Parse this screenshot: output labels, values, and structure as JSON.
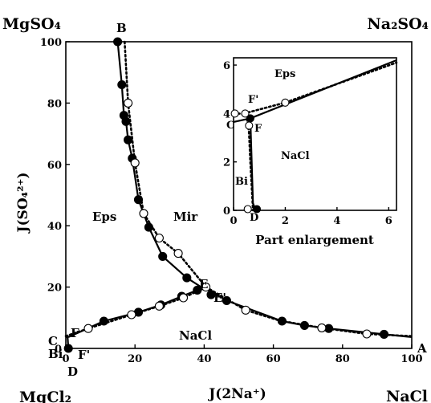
{
  "chart_data": [
    {
      "type": "scatter",
      "title": "",
      "xlabel": "J(2Na⁺)",
      "ylabel": "J(SO₄²⁺)",
      "xlim": [
        0,
        100
      ],
      "ylim": [
        0,
        100
      ],
      "xticks": [
        "0",
        "20",
        "40",
        "60",
        "80",
        "100"
      ],
      "yticks": [
        "0",
        "20",
        "40",
        "60",
        "80",
        "100"
      ],
      "corners": {
        "top_left": "MgSO₄",
        "top_right": "Na₂SO₄",
        "bottom_left": "MgCl₂",
        "bottom_right": "NaCl"
      },
      "regions": {
        "eps": "Eps",
        "mir": "Mir",
        "nacl": "NaCl"
      },
      "points_labels": {
        "A": "A",
        "B": "B",
        "C": "C",
        "D": "D",
        "E": "E",
        "E_prime": "E'",
        "F": "F",
        "F_prime": "F'",
        "Bi": "Bi"
      },
      "series": [
        {
          "style": "solid line, filled circles",
          "curves": [
            {
              "x": [
                15.0,
                16.2,
                16.8,
                17.4,
                18.0,
                19.2,
                21.0,
                24.0,
                28.0,
                35.0,
                40.5
              ],
              "y": [
                100,
                86,
                76,
                74,
                68,
                62,
                48.5,
                39.5,
                30,
                23,
                19
              ]
            },
            {
              "x": [
                0,
                0.5,
                1.0,
                11.0,
                21.0,
                27.5,
                33.5,
                38.0,
                40.5
              ],
              "y": [
                3.7,
                3.7,
                3.8,
                8.9,
                11.8,
                14.2,
                17.0,
                19.0,
                19.5
              ]
            },
            {
              "x": [
                40.5,
                46.5,
                62.5,
                69.0,
                76.0,
                92.0,
                100.0
              ],
              "y": [
                19.5,
                15.6,
                8.9,
                7.5,
                6.5,
                4.6,
                3.7
              ]
            },
            {
              "x": [
                0.5,
                0.75
              ],
              "y": [
                3.8,
                0
              ]
            }
          ],
          "markers": {
            "x": [
              15.0,
              16.2,
              16.8,
              17.4,
              18.0,
              19.2,
              21.0,
              24.0,
              28.0,
              35.0,
              0.75,
              11.0,
              21.0,
              27.5,
              33.5,
              38.0,
              42.0,
              46.5,
              62.5,
              69.0,
              76.0,
              92.0
            ],
            "y": [
              100,
              86,
              76,
              74,
              68,
              62,
              48.5,
              39.5,
              30,
              23,
              0,
              8.9,
              11.8,
              14.2,
              17.0,
              19.0,
              17.5,
              15.6,
              8.9,
              7.5,
              6.5,
              4.6
            ]
          }
        },
        {
          "style": "dotted line, open circles",
          "curves": [
            {
              "x": [
                17.0,
                18.0,
                20.0,
                22.5,
                27.0,
                32.5,
                40.5
              ],
              "y": [
                100,
                80,
                60.5,
                44,
                36,
                31,
                20
              ]
            },
            {
              "x": [
                0,
                6.5,
                19.0,
                27.0,
                34.0,
                40.5
              ],
              "y": [
                4.0,
                6.5,
                11.0,
                13.8,
                16.5,
                20
              ]
            },
            {
              "x": [
                40.5,
                52.0,
                62.0,
                74.0,
                87.0,
                100.0
              ],
              "y": [
                20,
                12.5,
                9.0,
                6.7,
                4.7,
                4.0
              ]
            }
          ],
          "markers": {
            "x": [
              18.0,
              20.0,
              22.5,
              27.0,
              32.5,
              6.5,
              19.0,
              27.0,
              34.0,
              40.5,
              52.0,
              74.0,
              87.0
            ],
            "y": [
              80,
              60.5,
              44,
              36,
              31,
              6.5,
              11.0,
              13.8,
              16.5,
              20,
              12.5,
              6.7,
              4.7
            ]
          }
        }
      ]
    },
    {
      "type": "scatter",
      "title": "Part enlargement",
      "xlim": [
        0,
        6.3
      ],
      "ylim": [
        0,
        6.3
      ],
      "xticks": [
        "0",
        "2",
        "4",
        "6"
      ],
      "yticks": [
        "0",
        "2",
        "4",
        "6"
      ],
      "regions": {
        "eps": "Eps",
        "nacl": "NaCl"
      },
      "points_labels": {
        "C": "C",
        "D": "D",
        "F": "F",
        "F_prime": "F'",
        "Bi": "Bi"
      },
      "series": [
        {
          "style": "solid line, filled circles",
          "curves": [
            {
              "x": [
                0,
                0.65,
                6.3
              ],
              "y": [
                3.65,
                3.8,
                6.2
              ]
            },
            {
              "x": [
                0.65,
                0.75,
                0.85
              ],
              "y": [
                3.8,
                0.3,
                0
              ]
            }
          ],
          "markers": {
            "x": [
              0.65,
              0.9
            ],
            "y": [
              3.8,
              0.05
            ]
          }
        },
        {
          "style": "dotted line, open circles",
          "curves": [
            {
              "x": [
                0,
                0.2,
                0.5,
                0.6,
                0.65,
                0.7,
                0.75
              ],
              "y": [
                4.0,
                4.0,
                3.95,
                3.2,
                2.0,
                1.0,
                0
              ]
            },
            {
              "x": [
                0.4,
                2.0,
                6.3
              ],
              "y": [
                4.0,
                4.45,
                6.1
              ]
            }
          ],
          "markers": {
            "x": [
              0.05,
              0.45,
              0.6,
              2.0,
              0.55
            ],
            "y": [
              4.0,
              4.0,
              3.5,
              4.45,
              0.05
            ]
          }
        }
      ]
    }
  ]
}
